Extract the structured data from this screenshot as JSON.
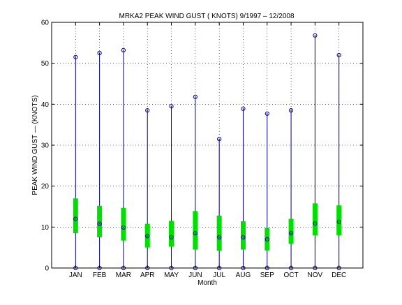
{
  "chart_data": {
    "type": "box",
    "title": "MRKA2  PEAK WIND GUST ( KNOTS) 9/1997 – 12/2008",
    "xlabel": "Month",
    "ylabel": "PEAK WIND GUST — (KNOTS)",
    "categories": [
      "JAN",
      "FEB",
      "MAR",
      "APR",
      "MAY",
      "JUN",
      "JUL",
      "AUG",
      "SEP",
      "OCT",
      "NOV",
      "DEC"
    ],
    "ylim": [
      0,
      60
    ],
    "yticks": [
      0,
      10,
      20,
      30,
      40,
      50,
      60
    ],
    "grid": true,
    "series": [
      {
        "min": [
          0,
          0,
          0,
          0,
          0,
          0,
          0,
          0,
          0,
          0,
          0,
          0
        ],
        "max": [
          51.5,
          52.5,
          53.2,
          38.5,
          39.5,
          41.8,
          31.5,
          38.9,
          37.7,
          38.5,
          56.8,
          52.0
        ],
        "q1": [
          8.5,
          7.5,
          6.7,
          5.0,
          5.2,
          4.5,
          4.2,
          4.5,
          4.3,
          5.9,
          8.0,
          8.0
        ],
        "q3": [
          17.0,
          15.2,
          14.7,
          10.8,
          11.5,
          13.9,
          12.8,
          11.4,
          9.8,
          12.0,
          15.8,
          15.3
        ],
        "median": [
          12.0,
          10.8,
          9.9,
          7.8,
          7.5,
          8.5,
          7.5,
          7.5,
          7.0,
          8.5,
          10.9,
          11.3
        ]
      }
    ],
    "colors": {
      "whisker": "#00008b",
      "box": "#00e000",
      "marker": "#00008b",
      "grid": "#000000",
      "axis": "#000000"
    }
  }
}
